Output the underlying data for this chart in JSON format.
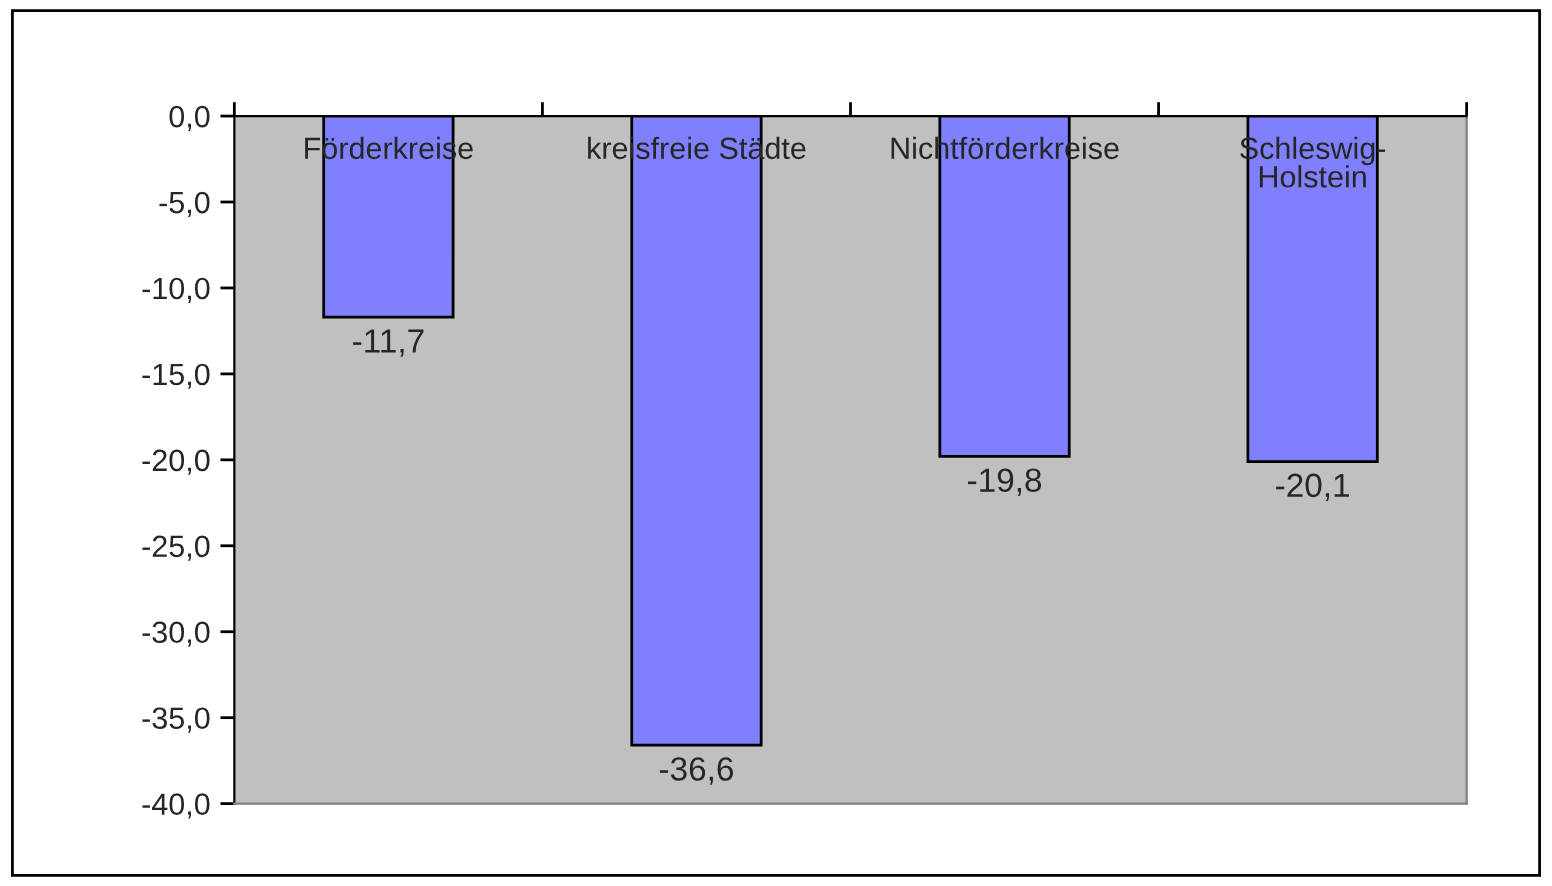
{
  "chart_data": {
    "type": "bar",
    "categories": [
      "Förderkreise",
      "kreisfreie Städte",
      "Nichtförderkreise",
      "Schleswig-Holstein"
    ],
    "values": [
      -11.7,
      -36.6,
      -19.8,
      -20.1
    ],
    "color": "#8080ff",
    "value_labels": [
      "-11,7",
      "-36,6",
      "-19,8",
      "-20,1"
    ],
    "ylim": [
      -40,
      0
    ],
    "yticks": [
      {
        "value": 0,
        "label": "0,0"
      },
      {
        "value": -5,
        "label": "-5,0"
      },
      {
        "value": -10,
        "label": "-10,0"
      },
      {
        "value": -15,
        "label": "-15,0"
      },
      {
        "value": -20,
        "label": "-20,0"
      },
      {
        "value": -25,
        "label": "-25,0"
      },
      {
        "value": -30,
        "label": "-30,0"
      },
      {
        "value": -35,
        "label": "-35,0"
      },
      {
        "value": -40,
        "label": "-40,0"
      }
    ],
    "grid": false,
    "legend": false
  }
}
